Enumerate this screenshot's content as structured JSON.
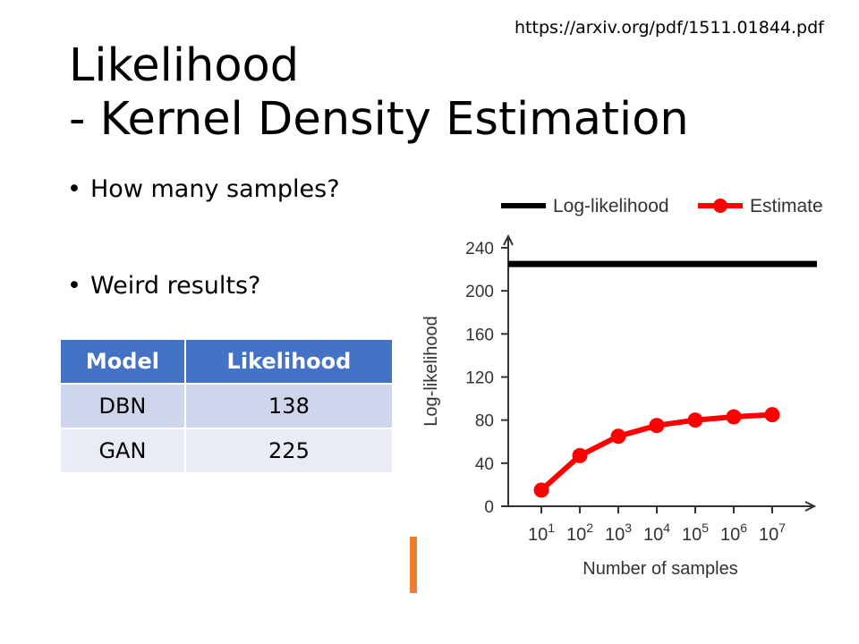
{
  "slide": {
    "url": "https://arxiv.org/pdf/1511.01844.pdf",
    "title_line1": "Likelihood",
    "title_line2": "- Kernel Density Estimation",
    "bullets": [
      "How many samples?",
      "Weird results?"
    ],
    "bullet_char": "•"
  },
  "table": {
    "headers": [
      "Model",
      "Likelihood"
    ],
    "rows": [
      [
        "DBN",
        "138"
      ],
      [
        "GAN",
        "225"
      ]
    ],
    "header_color": "#4472c4"
  },
  "chart_data": {
    "type": "line",
    "title": "",
    "xlabel": "Number of samples",
    "ylabel": "Log-likelihood",
    "categories": [
      "10^1",
      "10^2",
      "10^3",
      "10^4",
      "10^5",
      "10^6",
      "10^7"
    ],
    "tick_base": "10",
    "tick_exponents": [
      "1",
      "2",
      "3",
      "4",
      "5",
      "6",
      "7"
    ],
    "yticks": [
      0,
      40,
      80,
      120,
      160,
      200,
      240
    ],
    "ylim": [
      0,
      240
    ],
    "legend_position": "top",
    "series": [
      {
        "name": "Log-likelihood",
        "color": "#000000",
        "values": [
          225,
          225,
          225,
          225,
          225,
          225,
          225
        ]
      },
      {
        "name": "Estimate",
        "color": "#ff0000",
        "values": [
          15,
          47,
          65,
          75,
          80,
          83,
          85
        ]
      }
    ]
  }
}
